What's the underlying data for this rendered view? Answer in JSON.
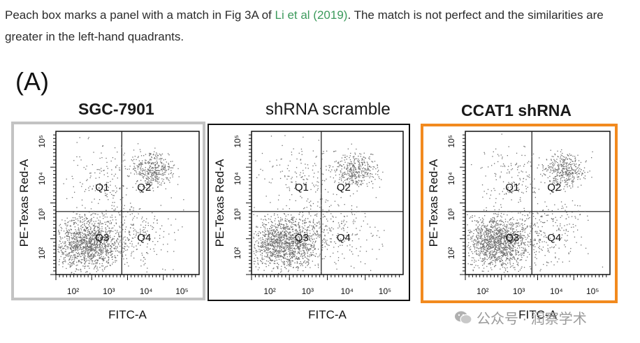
{
  "caption": {
    "before": "Peach box marks a panel with a match in Fig 3A of ",
    "link": "Li et al (2019)",
    "after": ". The match is not perfect and the similarities are greater in the left-hand quadrants."
  },
  "figure_label": "(A)",
  "panels": [
    {
      "title": "SGC-7901",
      "frame_color": "#c3c3c3",
      "highlight": false
    },
    {
      "title": "shRNA scramble",
      "frame_color": "#111111",
      "highlight": false
    },
    {
      "title": "CCAT1 shRNA",
      "frame_color": "#f28a1e",
      "highlight": true
    }
  ],
  "plot_text": {
    "ylabel": "PE-Texas Red-A",
    "xlabel": "FITC-A",
    "x_ticks": [
      "10²",
      "10³",
      "10⁴",
      "10⁵"
    ],
    "y_ticks": [
      "10²",
      "10³",
      "10⁴",
      "10⁵"
    ],
    "quadrants": [
      "Q1",
      "Q2",
      "Q3",
      "Q4"
    ]
  },
  "watermark": {
    "text": "公众号 · 润察学术",
    "icon": "wechat-icon"
  },
  "colors": {
    "link": "#3c9a5c",
    "highlight_box": "#f28a1e",
    "gray_box": "#c3c3c3",
    "dots": "#6e6e6e"
  }
}
